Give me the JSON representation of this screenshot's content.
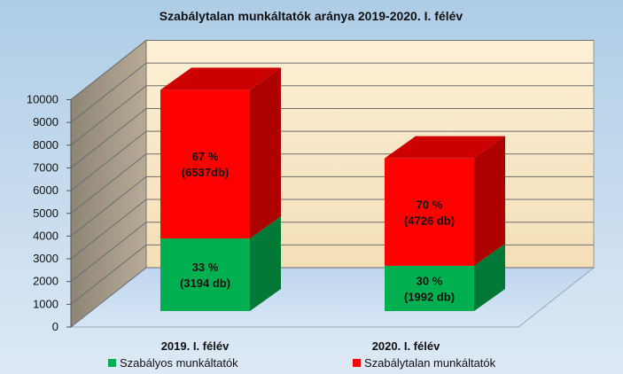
{
  "chart_data": {
    "type": "bar",
    "title": "Szabálytalan munkáltatók aránya 2019-2020. I. félév",
    "categories": [
      "2019. I. félév",
      "2020. I. félév"
    ],
    "stacked": true,
    "ylim": [
      0,
      10000
    ],
    "yticks": [
      0,
      1000,
      2000,
      3000,
      4000,
      5000,
      6000,
      7000,
      8000,
      9000,
      10000
    ],
    "grid": true,
    "legend_position": "bottom",
    "series": [
      {
        "name": "Szabályos munkáltatók",
        "color": "#00b050",
        "values": [
          3194,
          1992
        ],
        "labels": [
          [
            "33 %",
            "(3194 db)"
          ],
          [
            "30 %",
            "(1992 db)"
          ]
        ]
      },
      {
        "name": "Szabálytalan munkáltatók",
        "color": "#ff0000",
        "values": [
          6537,
          4726
        ],
        "labels": [
          [
            "67 %",
            "(6537db)"
          ],
          [
            "70 %",
            "(4726 db)"
          ]
        ]
      }
    ]
  }
}
